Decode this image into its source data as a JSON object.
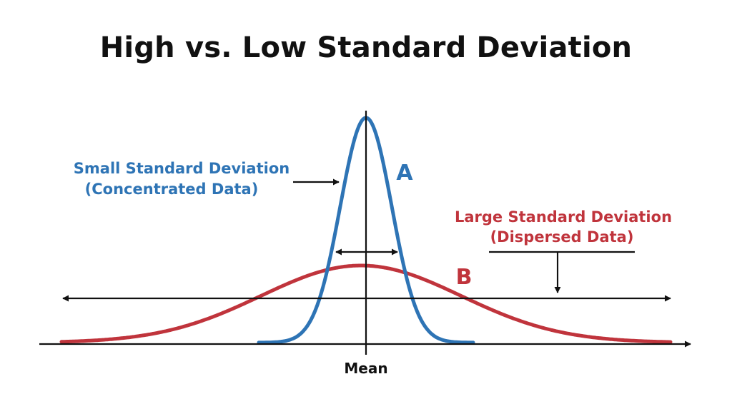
{
  "title": "High vs. Low Standard Deviation",
  "colors": {
    "small_sd": "#2e74b5",
    "large_sd": "#c0343c",
    "axis": "#111111"
  },
  "labels": {
    "small_sd_line1": "Small Standard Deviation",
    "small_sd_line2": "(Concentrated Data)",
    "small_sd_letter": "A",
    "large_sd_line1": "Large Standard Deviation",
    "large_sd_line2": "(Dispersed Data)",
    "large_sd_letter": "B",
    "mean": "Mean"
  }
}
